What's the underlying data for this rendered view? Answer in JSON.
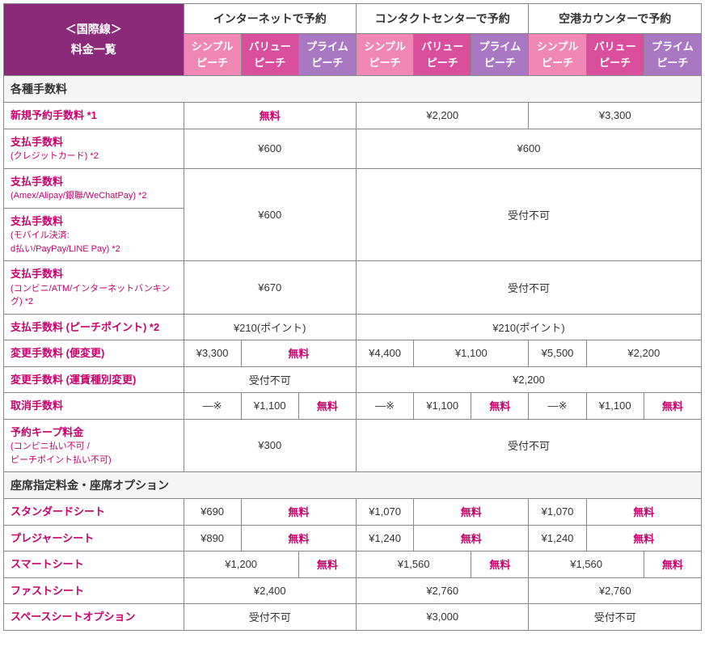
{
  "colors": {
    "purple": "#8c2a7a",
    "simple": "#f087b4",
    "value": "#d94f9c",
    "prime": "#a879c2",
    "accent": "#c9006b",
    "section_bg": "#f5f5f5",
    "border": "#888888",
    "text": "#333333"
  },
  "header": {
    "corner_line1": "＜国際線＞",
    "corner_line2": "料金一覧",
    "channels": [
      "インターネットで予約",
      "コンタクトセンターで予約",
      "空港カウンターで予約"
    ],
    "plans": {
      "simple_l1": "シンプル",
      "simple_l2": "ピーチ",
      "value_l1": "バリュー",
      "value_l2": "ピーチ",
      "prime_l1": "プライム",
      "prime_l2": "ピーチ"
    }
  },
  "sections": {
    "fees": "各種手数料",
    "seats": "座席指定料金・座席オプション"
  },
  "labels": {
    "free": "無料",
    "na": "受付不可",
    "dash": "―※"
  },
  "rows": {
    "new_booking": {
      "title": "新規予約手数料 *1",
      "c2": "¥2,200",
      "c3": "¥3,300"
    },
    "pay_cc": {
      "title": "支払手数料",
      "sub": "(クレジットカード) *2",
      "c1": "¥600",
      "c23": "¥600"
    },
    "pay_amex": {
      "title": "支払手数料",
      "sub": "(Amex/Alipay/銀聯/WeChatPay) *2"
    },
    "pay_mobile": {
      "title": "支払手数料",
      "sub1": "(モバイル決済:",
      "sub2": "d払い/PayPay/LINE Pay) *2"
    },
    "pay_amex_mobile_c1": "¥600",
    "pay_conv": {
      "title": "支払手数料",
      "sub": "(コンビニ/ATM/インターネットバンキング) *2",
      "c1": "¥670"
    },
    "pay_points": {
      "title": "支払手数料 (ピーチポイント) *2",
      "c1": "¥210(ポイント)",
      "c23": "¥210(ポイント)"
    },
    "change_flight": {
      "title": "変更手数料 (便変更)",
      "v1": "¥3,300",
      "v2": "¥4,400",
      "v3": "¥1,100",
      "v4": "¥5,500",
      "v5": "¥2,200"
    },
    "change_fare": {
      "title": "変更手数料 (運賃種別変更)",
      "c23": "¥2,200"
    },
    "cancel": {
      "title": "取消手数料",
      "v": "¥1,100"
    },
    "keep": {
      "title": "予約キープ料金",
      "sub1": "(コンビニ払い不可 /",
      "sub2": "ピーチポイント払い不可)",
      "c1": "¥300"
    },
    "seat_std": {
      "title": "スタンダードシート",
      "v1": "¥690",
      "v2": "¥1,070",
      "v3": "¥1,070"
    },
    "seat_pleasure": {
      "title": "プレジャーシート",
      "v1": "¥890",
      "v2": "¥1,240",
      "v3": "¥1,240"
    },
    "seat_smart": {
      "title": "スマートシート",
      "v1": "¥1,200",
      "v2": "¥1,560",
      "v3": "¥1,560"
    },
    "seat_fast": {
      "title": "ファストシート",
      "v1": "¥2,400",
      "v2": "¥2,760",
      "v3": "¥2,760"
    },
    "seat_space": {
      "title": "スペースシートオプション",
      "v2": "¥3,000"
    }
  }
}
